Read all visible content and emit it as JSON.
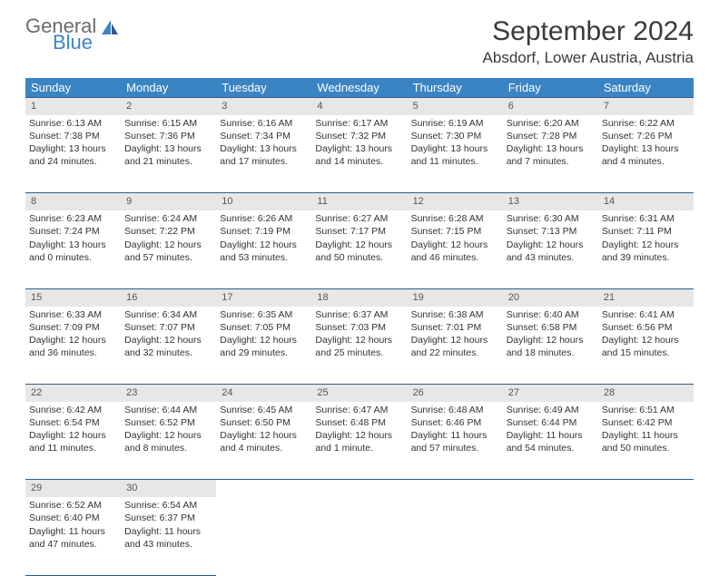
{
  "brand": {
    "general": "General",
    "blue": "Blue"
  },
  "title": "September 2024",
  "location": "Absdorf, Lower Austria, Austria",
  "header_bg": "#3b84c4",
  "daynum_bg": "#e7e7e7",
  "border_color": "#2f5d86",
  "weekdays": [
    "Sunday",
    "Monday",
    "Tuesday",
    "Wednesday",
    "Thursday",
    "Friday",
    "Saturday"
  ],
  "weeks": [
    [
      {
        "n": "1",
        "sr": "Sunrise: 6:13 AM",
        "ss": "Sunset: 7:38 PM",
        "d1": "Daylight: 13 hours",
        "d2": "and 24 minutes."
      },
      {
        "n": "2",
        "sr": "Sunrise: 6:15 AM",
        "ss": "Sunset: 7:36 PM",
        "d1": "Daylight: 13 hours",
        "d2": "and 21 minutes."
      },
      {
        "n": "3",
        "sr": "Sunrise: 6:16 AM",
        "ss": "Sunset: 7:34 PM",
        "d1": "Daylight: 13 hours",
        "d2": "and 17 minutes."
      },
      {
        "n": "4",
        "sr": "Sunrise: 6:17 AM",
        "ss": "Sunset: 7:32 PM",
        "d1": "Daylight: 13 hours",
        "d2": "and 14 minutes."
      },
      {
        "n": "5",
        "sr": "Sunrise: 6:19 AM",
        "ss": "Sunset: 7:30 PM",
        "d1": "Daylight: 13 hours",
        "d2": "and 11 minutes."
      },
      {
        "n": "6",
        "sr": "Sunrise: 6:20 AM",
        "ss": "Sunset: 7:28 PM",
        "d1": "Daylight: 13 hours",
        "d2": "and 7 minutes."
      },
      {
        "n": "7",
        "sr": "Sunrise: 6:22 AM",
        "ss": "Sunset: 7:26 PM",
        "d1": "Daylight: 13 hours",
        "d2": "and 4 minutes."
      }
    ],
    [
      {
        "n": "8",
        "sr": "Sunrise: 6:23 AM",
        "ss": "Sunset: 7:24 PM",
        "d1": "Daylight: 13 hours",
        "d2": "and 0 minutes."
      },
      {
        "n": "9",
        "sr": "Sunrise: 6:24 AM",
        "ss": "Sunset: 7:22 PM",
        "d1": "Daylight: 12 hours",
        "d2": "and 57 minutes."
      },
      {
        "n": "10",
        "sr": "Sunrise: 6:26 AM",
        "ss": "Sunset: 7:19 PM",
        "d1": "Daylight: 12 hours",
        "d2": "and 53 minutes."
      },
      {
        "n": "11",
        "sr": "Sunrise: 6:27 AM",
        "ss": "Sunset: 7:17 PM",
        "d1": "Daylight: 12 hours",
        "d2": "and 50 minutes."
      },
      {
        "n": "12",
        "sr": "Sunrise: 6:28 AM",
        "ss": "Sunset: 7:15 PM",
        "d1": "Daylight: 12 hours",
        "d2": "and 46 minutes."
      },
      {
        "n": "13",
        "sr": "Sunrise: 6:30 AM",
        "ss": "Sunset: 7:13 PM",
        "d1": "Daylight: 12 hours",
        "d2": "and 43 minutes."
      },
      {
        "n": "14",
        "sr": "Sunrise: 6:31 AM",
        "ss": "Sunset: 7:11 PM",
        "d1": "Daylight: 12 hours",
        "d2": "and 39 minutes."
      }
    ],
    [
      {
        "n": "15",
        "sr": "Sunrise: 6:33 AM",
        "ss": "Sunset: 7:09 PM",
        "d1": "Daylight: 12 hours",
        "d2": "and 36 minutes."
      },
      {
        "n": "16",
        "sr": "Sunrise: 6:34 AM",
        "ss": "Sunset: 7:07 PM",
        "d1": "Daylight: 12 hours",
        "d2": "and 32 minutes."
      },
      {
        "n": "17",
        "sr": "Sunrise: 6:35 AM",
        "ss": "Sunset: 7:05 PM",
        "d1": "Daylight: 12 hours",
        "d2": "and 29 minutes."
      },
      {
        "n": "18",
        "sr": "Sunrise: 6:37 AM",
        "ss": "Sunset: 7:03 PM",
        "d1": "Daylight: 12 hours",
        "d2": "and 25 minutes."
      },
      {
        "n": "19",
        "sr": "Sunrise: 6:38 AM",
        "ss": "Sunset: 7:01 PM",
        "d1": "Daylight: 12 hours",
        "d2": "and 22 minutes."
      },
      {
        "n": "20",
        "sr": "Sunrise: 6:40 AM",
        "ss": "Sunset: 6:58 PM",
        "d1": "Daylight: 12 hours",
        "d2": "and 18 minutes."
      },
      {
        "n": "21",
        "sr": "Sunrise: 6:41 AM",
        "ss": "Sunset: 6:56 PM",
        "d1": "Daylight: 12 hours",
        "d2": "and 15 minutes."
      }
    ],
    [
      {
        "n": "22",
        "sr": "Sunrise: 6:42 AM",
        "ss": "Sunset: 6:54 PM",
        "d1": "Daylight: 12 hours",
        "d2": "and 11 minutes."
      },
      {
        "n": "23",
        "sr": "Sunrise: 6:44 AM",
        "ss": "Sunset: 6:52 PM",
        "d1": "Daylight: 12 hours",
        "d2": "and 8 minutes."
      },
      {
        "n": "24",
        "sr": "Sunrise: 6:45 AM",
        "ss": "Sunset: 6:50 PM",
        "d1": "Daylight: 12 hours",
        "d2": "and 4 minutes."
      },
      {
        "n": "25",
        "sr": "Sunrise: 6:47 AM",
        "ss": "Sunset: 6:48 PM",
        "d1": "Daylight: 12 hours",
        "d2": "and 1 minute."
      },
      {
        "n": "26",
        "sr": "Sunrise: 6:48 AM",
        "ss": "Sunset: 6:46 PM",
        "d1": "Daylight: 11 hours",
        "d2": "and 57 minutes."
      },
      {
        "n": "27",
        "sr": "Sunrise: 6:49 AM",
        "ss": "Sunset: 6:44 PM",
        "d1": "Daylight: 11 hours",
        "d2": "and 54 minutes."
      },
      {
        "n": "28",
        "sr": "Sunrise: 6:51 AM",
        "ss": "Sunset: 6:42 PM",
        "d1": "Daylight: 11 hours",
        "d2": "and 50 minutes."
      }
    ],
    [
      {
        "n": "29",
        "sr": "Sunrise: 6:52 AM",
        "ss": "Sunset: 6:40 PM",
        "d1": "Daylight: 11 hours",
        "d2": "and 47 minutes."
      },
      {
        "n": "30",
        "sr": "Sunrise: 6:54 AM",
        "ss": "Sunset: 6:37 PM",
        "d1": "Daylight: 11 hours",
        "d2": "and 43 minutes."
      },
      null,
      null,
      null,
      null,
      null
    ]
  ]
}
